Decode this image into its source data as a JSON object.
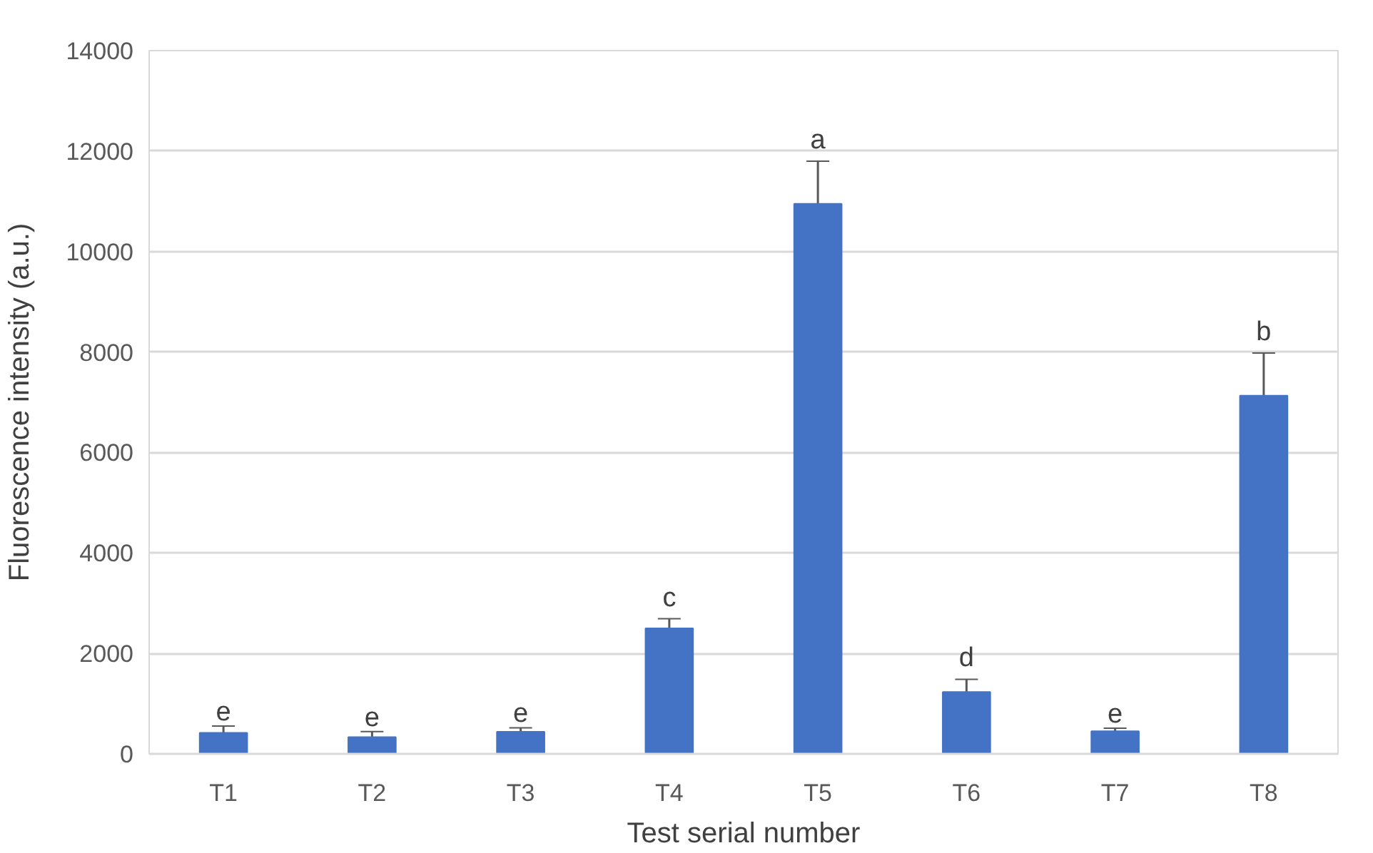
{
  "chart_data": {
    "type": "bar",
    "xlabel": "Test serial number",
    "ylabel": "Fluorescence intensity (a.u.)",
    "categories": [
      "T1",
      "T2",
      "T3",
      "T4",
      "T5",
      "T6",
      "T7",
      "T8"
    ],
    "values": [
      420,
      335,
      440,
      2500,
      10950,
      1230,
      450,
      7130
    ],
    "errors": [
      135,
      110,
      80,
      190,
      850,
      255,
      60,
      850
    ],
    "color": "#4472c4",
    "ylim": [
      0,
      14000
    ],
    "yticks": [
      0,
      2000,
      4000,
      6000,
      8000,
      10000,
      12000,
      14000
    ],
    "grid": "y",
    "annotations": [
      {
        "text": "e",
        "x": "T1",
        "y": 555
      },
      {
        "text": "e",
        "x": "T2",
        "y": 445
      },
      {
        "text": "e",
        "x": "T3",
        "y": 520
      },
      {
        "text": "c",
        "x": "T4",
        "y": 2690
      },
      {
        "text": "a",
        "x": "T5",
        "y": 11800
      },
      {
        "text": "d",
        "x": "T6",
        "y": 1485
      },
      {
        "text": "e",
        "x": "T7",
        "y": 510
      },
      {
        "text": "b",
        "x": "T8",
        "y": 7980
      }
    ]
  }
}
